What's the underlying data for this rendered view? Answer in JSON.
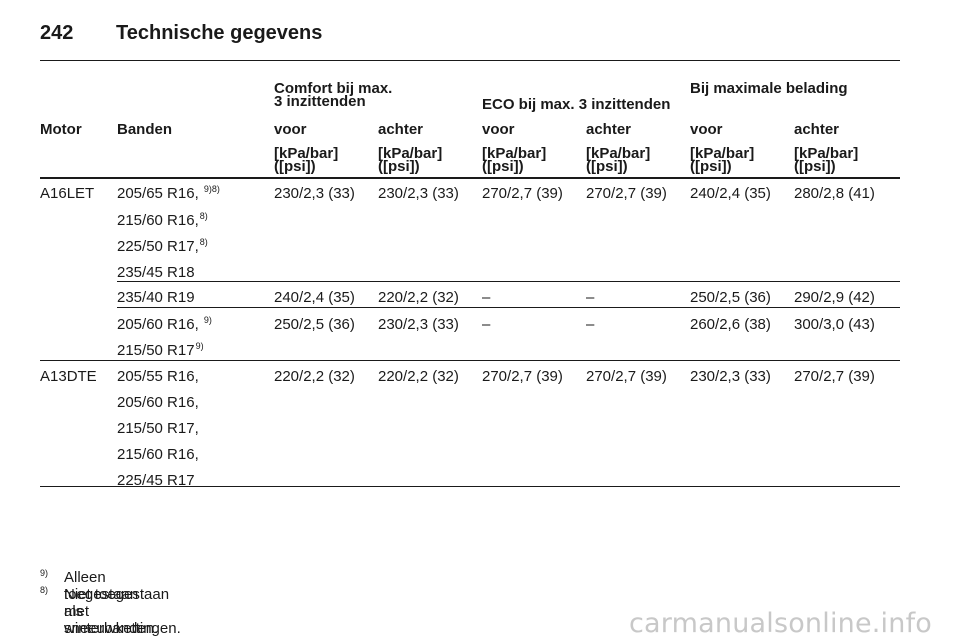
{
  "page": {
    "number": "242",
    "title": "Technische gegevens"
  },
  "table": {
    "group_headers": {
      "comfort_line1": "Comfort bij max.",
      "comfort_line2": "3 inzittenden",
      "eco": "ECO bij max. 3 inzittenden",
      "max": "Bij maximale belading"
    },
    "col_headers": {
      "motor": "Motor",
      "banden": "Banden",
      "voor": "voor",
      "achter": "achter"
    },
    "unit_line1": "[kPa/bar]",
    "unit_line2": "([psi])",
    "rows": [
      {
        "motor": "A16LET",
        "tyres": [
          {
            "size": "205/65 R16,",
            "sup": "9)8)"
          },
          {
            "size": "215/60 R16,",
            "sup": "8)"
          },
          {
            "size": "225/50 R17,",
            "sup": "8)"
          },
          {
            "size": "235/45 R18",
            "sup": ""
          }
        ],
        "values": [
          "230/2,3 (33)",
          "230/2,3 (33)",
          "270/2,7 (39)",
          "270/2,7 (39)",
          "240/2,4 (35)",
          "280/2,8 (41)"
        ]
      },
      {
        "motor": "",
        "tyres": [
          {
            "size": "235/40 R19",
            "sup": ""
          }
        ],
        "values": [
          "240/2,4 (35)",
          "220/2,2 (32)",
          "–",
          "–",
          "250/2,5 (36)",
          "290/2,9 (42)"
        ]
      },
      {
        "motor": "",
        "tyres": [
          {
            "size": "205/60 R16,",
            "sup": "9)"
          },
          {
            "size": "215/50 R17",
            "sup": "9)"
          }
        ],
        "values": [
          "250/2,5 (36)",
          "230/2,3 (33)",
          "–",
          "–",
          "260/2,6 (38)",
          "300/3,0 (43)"
        ]
      },
      {
        "motor": "A13DTE",
        "tyres": [
          {
            "size": "205/55 R16,",
            "sup": ""
          },
          {
            "size": "205/60 R16,",
            "sup": ""
          },
          {
            "size": "215/50 R17,",
            "sup": ""
          },
          {
            "size": "215/60 R16,",
            "sup": ""
          },
          {
            "size": "225/45 R17",
            "sup": ""
          }
        ],
        "values": [
          "220/2,2 (32)",
          "220/2,2 (32)",
          "270/2,7 (39)",
          "270/2,7 (39)",
          "230/2,3 (33)",
          "270/2,7 (39)"
        ]
      }
    ]
  },
  "footnotes": [
    {
      "mark": "9)",
      "text": "Alleen toegestaan als winterbanden."
    },
    {
      "mark": "8)",
      "text": "Niet toegestaan met sneeuwkettingen."
    }
  ],
  "watermark": "carmanualsonline.info"
}
